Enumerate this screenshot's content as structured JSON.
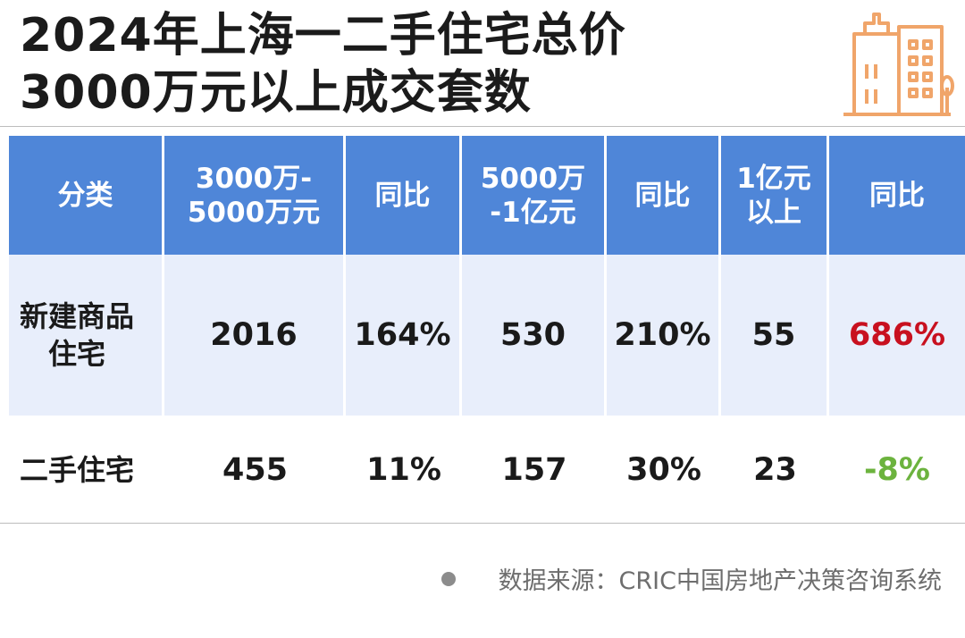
{
  "title": {
    "line1": "2024年上海一二手住宅总价",
    "line2": "3000万元以上成交套数"
  },
  "icon": "building-icon",
  "accent_color": "#4f86d8",
  "chart_data": {
    "type": "table",
    "columns": [
      "分类",
      "3000万-\n5000万元",
      "同比",
      "5000万\n-1亿元",
      "同比",
      "1亿元\n以上",
      "同比"
    ],
    "rows": [
      [
        "新建商品\n住宅",
        "2016",
        "164%",
        "530",
        "210%",
        "55",
        "686%"
      ],
      [
        "二手住宅",
        "455",
        "11%",
        "157",
        "30%",
        "23",
        "-8%"
      ]
    ],
    "highlight_colors": {
      "686%": "#c8101f",
      "-8%": "#6cb33e"
    }
  },
  "source": "数据来源：CRIC中国房地产决策咨询系统"
}
